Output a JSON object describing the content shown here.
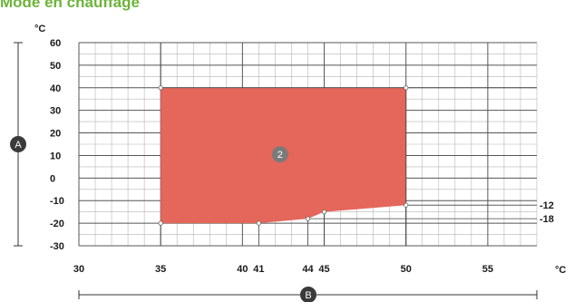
{
  "title": "Mode en chauffage",
  "chart_data": {
    "type": "area",
    "y_unit": "°C",
    "x_unit": "°C",
    "xlim": [
      30,
      58
    ],
    "ylim": [
      -30,
      60
    ],
    "y_ticks": [
      "60",
      "50",
      "40",
      "30",
      "20",
      "10",
      "0",
      "-10",
      "-20",
      "-30"
    ],
    "x_ticks": [
      "30",
      "35",
      "40",
      "41",
      "44",
      "45",
      "50",
      "55"
    ],
    "polygon": [
      {
        "x": 35,
        "y": 40
      },
      {
        "x": 50,
        "y": 40
      },
      {
        "x": 50,
        "y": -12
      },
      {
        "x": 45,
        "y": -15
      },
      {
        "x": 44,
        "y": -18
      },
      {
        "x": 41,
        "y": -20
      },
      {
        "x": 35,
        "y": -20
      }
    ],
    "right_labels": [
      "-12",
      "-18"
    ],
    "region_label": "2",
    "y_axis_marker": "A",
    "x_axis_marker": "B",
    "fill_color": "#e5665a",
    "grid": true
  }
}
